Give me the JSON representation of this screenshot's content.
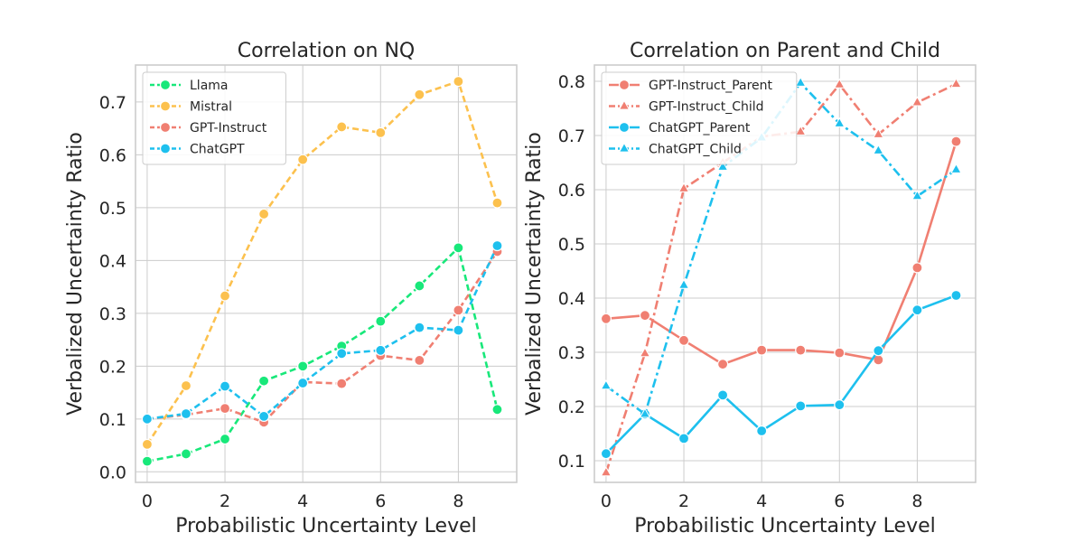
{
  "chart_data": [
    {
      "type": "line",
      "title": "Correlation on NQ",
      "xlabel": "Probabilistic Uncertainty Level",
      "ylabel": "Verbalized Uncertainty Ratio",
      "x": [
        0,
        1,
        2,
        3,
        4,
        5,
        6,
        7,
        8,
        9
      ],
      "xlim": [
        -0.3,
        9.5
      ],
      "ylim": [
        -0.02,
        0.77
      ],
      "xticks": [
        0,
        2,
        4,
        6,
        8
      ],
      "yticks": [
        0.0,
        0.1,
        0.2,
        0.3,
        0.4,
        0.5,
        0.6,
        0.7
      ],
      "grid": true,
      "legend": "top-left",
      "series": [
        {
          "name": "Llama",
          "color": "#18e87a",
          "dash": "dashed",
          "marker": "circle",
          "values": [
            0.02,
            0.034,
            0.062,
            0.172,
            0.2,
            0.238,
            0.285,
            0.352,
            0.424,
            0.118
          ]
        },
        {
          "name": "Mistral",
          "color": "#fcc14e",
          "dash": "dashed",
          "marker": "circle",
          "values": [
            0.052,
            0.163,
            0.333,
            0.488,
            0.591,
            0.653,
            0.642,
            0.714,
            0.739,
            0.509
          ]
        },
        {
          "name": "GPT-Instruct",
          "color": "#f07f72",
          "dash": "dashed",
          "marker": "circle",
          "values": [
            0.1,
            0.108,
            0.12,
            0.094,
            0.17,
            0.167,
            0.22,
            0.211,
            0.306,
            0.417
          ]
        },
        {
          "name": "ChatGPT",
          "color": "#1ec0ee",
          "dash": "dashed",
          "marker": "circle",
          "values": [
            0.1,
            0.11,
            0.162,
            0.105,
            0.168,
            0.224,
            0.23,
            0.273,
            0.268,
            0.428
          ]
        }
      ]
    },
    {
      "type": "line",
      "title": "Correlation on Parent and Child",
      "xlabel": "Probabilistic Uncertainty Level",
      "ylabel": "Verbalized Uncertainty Ratio",
      "x": [
        0,
        1,
        2,
        3,
        4,
        5,
        6,
        7,
        8,
        9
      ],
      "xlim": [
        -0.3,
        9.5
      ],
      "ylim": [
        0.06,
        0.83
      ],
      "xticks": [
        0,
        2,
        4,
        6,
        8
      ],
      "yticks": [
        0.1,
        0.2,
        0.3,
        0.4,
        0.5,
        0.6,
        0.7,
        0.8
      ],
      "grid": true,
      "legend": "top-left",
      "series": [
        {
          "name": "GPT-Instruct_Parent",
          "color": "#f07f72",
          "dash": "solid",
          "marker": "circle",
          "values": [
            0.362,
            0.368,
            0.322,
            0.278,
            0.304,
            0.304,
            0.299,
            0.286,
            0.456,
            0.689
          ]
        },
        {
          "name": "GPT-Instruct_Child",
          "color": "#f07f72",
          "dash": "dashdot",
          "marker": "triangle",
          "values": [
            0.078,
            0.298,
            0.602,
            0.65,
            0.698,
            0.707,
            0.794,
            0.702,
            0.761,
            0.795
          ]
        },
        {
          "name": "ChatGPT_Parent",
          "color": "#1ec0ee",
          "dash": "solid",
          "marker": "circle",
          "values": [
            0.113,
            0.186,
            0.141,
            0.221,
            0.155,
            0.201,
            0.203,
            0.303,
            0.378,
            0.405
          ]
        },
        {
          "name": "ChatGPT_Child",
          "color": "#1ec0ee",
          "dash": "dashdot",
          "marker": "triangle",
          "values": [
            0.238,
            0.186,
            0.424,
            0.642,
            0.696,
            0.797,
            0.722,
            0.672,
            0.588,
            0.637
          ]
        }
      ]
    }
  ]
}
